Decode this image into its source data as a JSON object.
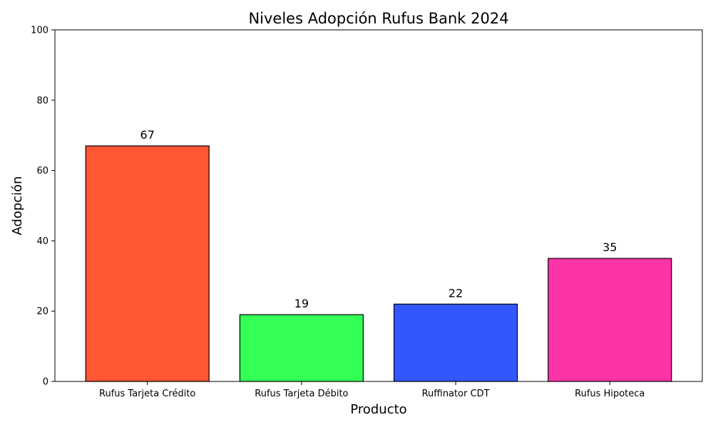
{
  "chart_data": {
    "type": "bar",
    "title": "Niveles Adopción Rufus Bank 2024",
    "xlabel": "Producto",
    "ylabel": "Adopción",
    "categories": [
      "Rufus Tarjeta Crédito",
      "Rufus Tarjeta Débito",
      "Ruffinator CDT",
      "Rufus Hipoteca"
    ],
    "values": [
      67,
      19,
      22,
      35
    ],
    "colors": [
      "#ff5733",
      "#33ff57",
      "#3357ff",
      "#ff33a8"
    ],
    "edge_color": "#000000",
    "ylim": [
      0,
      100
    ],
    "yticks": [
      0,
      20,
      40,
      60,
      80,
      100
    ],
    "grid": false,
    "data_labels": [
      "67",
      "19",
      "22",
      "35"
    ]
  }
}
